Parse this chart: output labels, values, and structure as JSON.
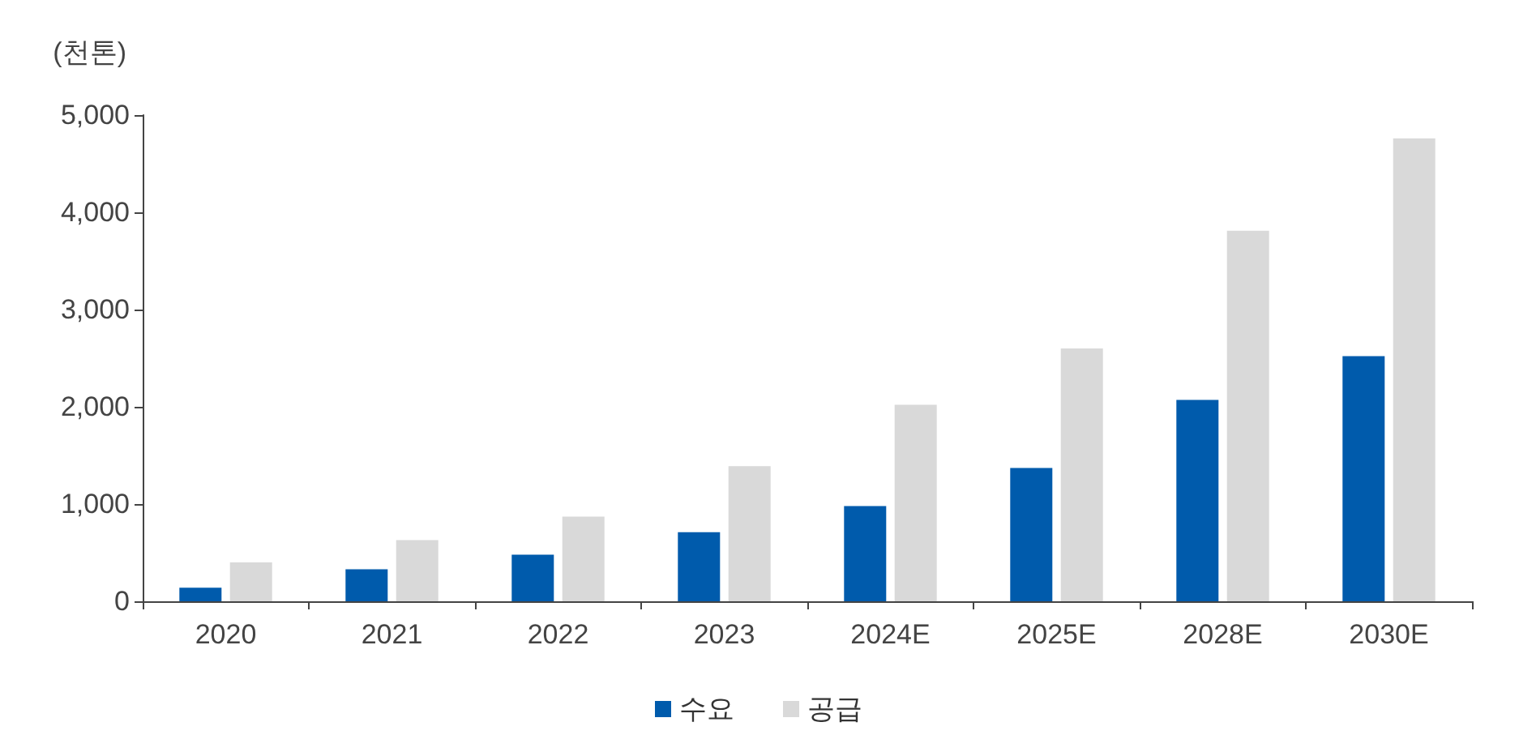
{
  "chart_data": {
    "type": "bar",
    "ylabel": "(천톤)",
    "categories": [
      "2020",
      "2021",
      "2022",
      "2023",
      "2024E",
      "2025E",
      "2028E",
      "2030E"
    ],
    "series": [
      {
        "name": "수요",
        "color": "#005bac",
        "values": [
          140,
          330,
          480,
          710,
          980,
          1370,
          2070,
          2520
        ]
      },
      {
        "name": "공급",
        "color": "#d9d9d9",
        "values": [
          400,
          630,
          870,
          1390,
          2020,
          2600,
          3810,
          4760
        ]
      }
    ],
    "ylim": [
      0,
      5000
    ],
    "yticks": [
      0,
      {
        "value": 1000,
        "label": "1,000"
      },
      {
        "value": 2000,
        "label": "2,000"
      },
      {
        "value": 3000,
        "label": "3,000"
      },
      {
        "value": 4000,
        "label": "4,000"
      },
      {
        "value": 5000,
        "label": "5,000"
      }
    ],
    "grid": false,
    "legend": "bottom"
  }
}
